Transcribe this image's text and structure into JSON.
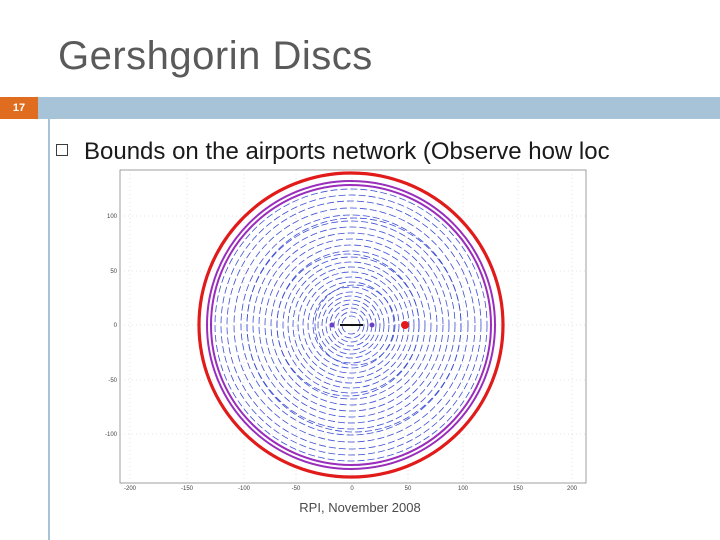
{
  "slide": {
    "title": "Gershgorin Discs",
    "number": "17",
    "bullet": "Bounds on the airports network (Observe how loc",
    "footer": "RPI, November 2008"
  },
  "figure": {
    "y_ticks": [
      "100",
      "50",
      "0",
      "-50",
      "-100"
    ],
    "x_ticks": [
      "-200",
      "-150",
      "-100",
      "-50",
      "0",
      "50",
      "100",
      "150",
      "200"
    ]
  },
  "colors": {
    "accent_bar": "#a7c3d8",
    "number_box": "#e06d1f",
    "disc_blue": "#3d4fd4",
    "disc_purple": "#9a2dbb",
    "disc_red": "#e11a1a"
  }
}
